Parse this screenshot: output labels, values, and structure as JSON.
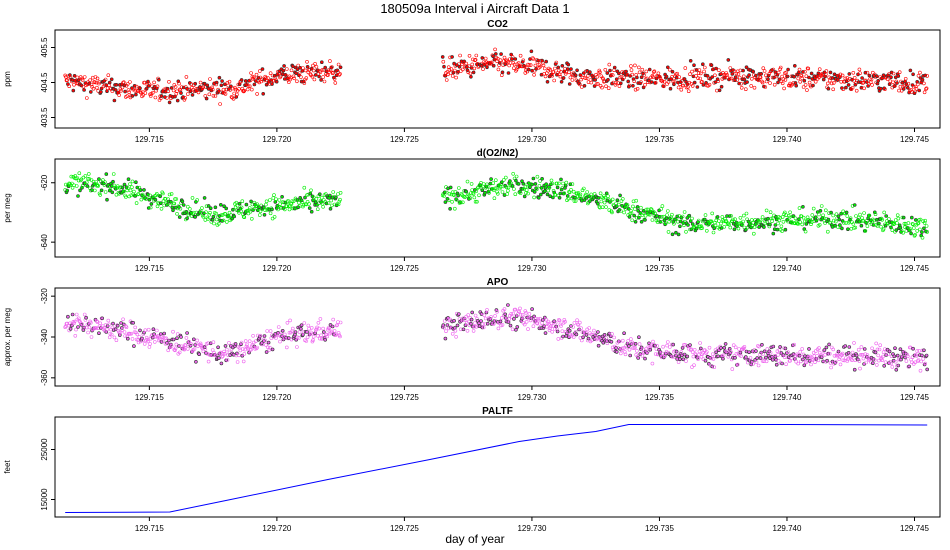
{
  "page_title": "180509a   Interval i Aircraft Data 1",
  "x_axis_label": "day of year",
  "chart_data": [
    {
      "type": "scatter",
      "title": "CO2",
      "ylabel": "ppm",
      "color": "#ff0000",
      "xlim": [
        129.7113,
        129.746
      ],
      "ylim": [
        403.2,
        406.0
      ],
      "xticks": [
        129.715,
        129.72,
        129.725,
        129.73,
        129.735,
        129.74,
        129.745
      ],
      "xtick_labels": [
        "129.715",
        "129.720",
        "129.725",
        "129.730",
        "129.735",
        "129.740",
        "129.745"
      ],
      "yticks": [
        403.5,
        404.5,
        405.5
      ],
      "ytick_labels": [
        "403.5",
        "404.5",
        "405.5"
      ],
      "segments": [
        {
          "x_start": 129.7117,
          "x_end": 129.7225,
          "trend_x": [
            129.7117,
            129.7135,
            129.715,
            129.717,
            129.7185,
            129.72,
            129.7225
          ],
          "trend_y": [
            404.55,
            404.35,
            404.25,
            404.3,
            404.35,
            404.7,
            404.85
          ],
          "noise": 0.28
        },
        {
          "x_start": 129.7265,
          "x_end": 129.7455,
          "trend_x": [
            129.7265,
            129.7285,
            129.73,
            129.732,
            129.735,
            129.738,
            129.741,
            129.744,
            129.7455
          ],
          "trend_y": [
            404.85,
            405.05,
            404.95,
            404.65,
            404.6,
            404.7,
            404.6,
            404.55,
            404.45
          ],
          "noise": 0.3
        }
      ]
    },
    {
      "type": "scatter",
      "title": "d(O2/N2)",
      "ylabel": "per meg",
      "color": "#00ee00",
      "xlim": [
        129.7113,
        129.746
      ],
      "ylim": [
        -645,
        -612
      ],
      "xticks": [
        129.715,
        129.72,
        129.725,
        129.73,
        129.735,
        129.74,
        129.745
      ],
      "xtick_labels": [
        "129.715",
        "129.720",
        "129.725",
        "129.730",
        "129.735",
        "129.740",
        "129.745"
      ],
      "yticks": [
        -640,
        -620
      ],
      "ytick_labels": [
        "-640",
        "-620"
      ],
      "segments": [
        {
          "x_start": 129.7117,
          "x_end": 129.7225,
          "trend_x": [
            129.7117,
            129.7135,
            129.7155,
            129.7175,
            129.7195,
            129.7225
          ],
          "trend_y": [
            -620,
            -621,
            -626,
            -631,
            -628,
            -626
          ],
          "noise": 3.2
        },
        {
          "x_start": 129.7265,
          "x_end": 129.7455,
          "trend_x": [
            129.7265,
            129.729,
            129.731,
            129.733,
            129.736,
            129.739,
            129.742,
            129.7455
          ],
          "trend_y": [
            -625,
            -621,
            -622,
            -627,
            -634,
            -633,
            -632,
            -635
          ],
          "noise": 3.3
        }
      ]
    },
    {
      "type": "scatter",
      "title": "APO",
      "ylabel": "approx. per meg",
      "color": "#ee66ee",
      "xlim": [
        129.7113,
        129.746
      ],
      "ylim": [
        -364,
        -316
      ],
      "xticks": [
        129.715,
        129.72,
        129.725,
        129.73,
        129.735,
        129.74,
        129.745
      ],
      "xtick_labels": [
        "129.715",
        "129.720",
        "129.725",
        "129.730",
        "129.735",
        "129.740",
        "129.745"
      ],
      "yticks": [
        -360,
        -340,
        -320
      ],
      "ytick_labels": [
        "-360",
        "-340",
        "-320"
      ],
      "segments": [
        {
          "x_start": 129.7117,
          "x_end": 129.7225,
          "trend_x": [
            129.7117,
            129.714,
            129.7165,
            129.718,
            129.72,
            129.7225
          ],
          "trend_y": [
            -332,
            -337,
            -344,
            -349,
            -340,
            -336
          ],
          "noise": 5.0
        },
        {
          "x_start": 129.7265,
          "x_end": 129.7455,
          "trend_x": [
            129.7265,
            129.729,
            129.731,
            129.734,
            129.737,
            129.74,
            129.743,
            129.7455
          ],
          "trend_y": [
            -335,
            -330,
            -334,
            -346,
            -349,
            -349,
            -349,
            -351
          ],
          "noise": 5.0
        }
      ]
    },
    {
      "type": "line",
      "title": "PALTF",
      "ylabel": "feet",
      "color": "#0000ff",
      "xlim": [
        129.7113,
        129.746
      ],
      "ylim": [
        11500,
        31500
      ],
      "xticks": [
        129.715,
        129.72,
        129.725,
        129.73,
        129.735,
        129.74,
        129.745
      ],
      "xtick_labels": [
        "129.715",
        "129.720",
        "129.725",
        "129.730",
        "129.735",
        "129.740",
        "129.745"
      ],
      "yticks": [
        15000,
        25000
      ],
      "ytick_labels": [
        "15000",
        "25000"
      ],
      "x": [
        129.7117,
        129.7158,
        129.718,
        129.722,
        129.726,
        129.7295,
        129.731,
        129.7325,
        129.7338,
        129.74,
        129.7455
      ],
      "y": [
        12400,
        12500,
        14800,
        19000,
        23000,
        26600,
        27700,
        28600,
        30000,
        30000,
        29900
      ]
    }
  ]
}
